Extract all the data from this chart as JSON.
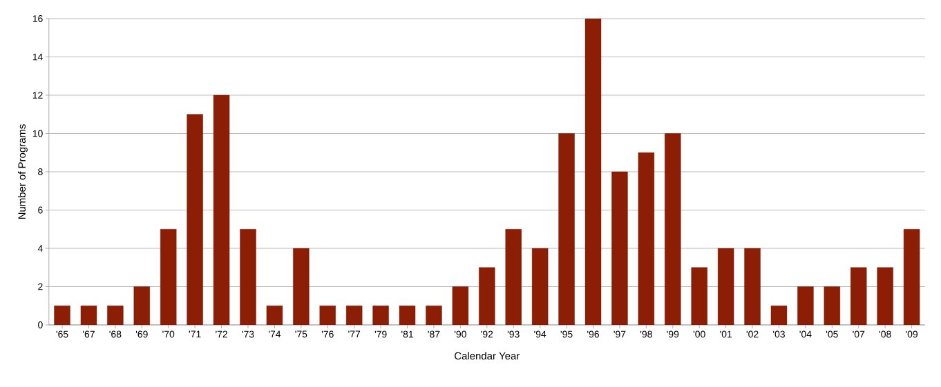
{
  "chart_data": {
    "type": "bar",
    "xlabel": "Calendar Year",
    "ylabel": "Number of Programs",
    "categories": [
      "'65",
      "'67",
      "'68",
      "'69",
      "'70",
      "'71",
      "'72",
      "'73",
      "'74",
      "'75",
      "'76",
      "'77",
      "'79",
      "'81",
      "'87",
      "'90",
      "'92",
      "'93",
      "'94",
      "'95",
      "'96",
      "'97",
      "'98",
      "'99",
      "'00",
      "'01",
      "'02",
      "'03",
      "'04",
      "'05",
      "'07",
      "'08",
      "'09"
    ],
    "values": [
      1,
      1,
      1,
      2,
      5,
      11,
      12,
      5,
      1,
      4,
      1,
      1,
      1,
      1,
      1,
      2,
      3,
      5,
      4,
      10,
      16,
      8,
      9,
      10,
      3,
      4,
      4,
      1,
      2,
      2,
      3,
      3,
      5
    ],
    "color": "#8b1e05",
    "ylim": [
      0,
      16
    ],
    "yticks": [
      0,
      2,
      4,
      6,
      8,
      10,
      12,
      14,
      16
    ],
    "grid": "y"
  }
}
